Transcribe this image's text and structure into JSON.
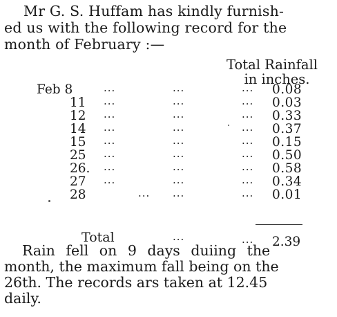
{
  "intro": {
    "lines": [
      "Mr G. S. Huffam has kindly furnish-",
      "ed us with the following record for the",
      "month of February :—"
    ]
  },
  "table": {
    "header": [
      "Total Rainfall",
      "in inches."
    ],
    "dots": "...",
    "rows": [
      {
        "day": "Feb  8",
        "value": "0.08"
      },
      {
        "day": "11",
        "value": "0.03"
      },
      {
        "day": "12",
        "value": "0.33"
      },
      {
        "day": "14",
        "value": "0.37"
      },
      {
        "day": "15",
        "value": "0.15"
      },
      {
        "day": "25",
        "value": "0.50"
      },
      {
        "day": "26.",
        "value": "0.58"
      },
      {
        "day": "27",
        "value": "0.34"
      },
      {
        "day": "28",
        "value": "0.01"
      }
    ],
    "total": {
      "label": "Total",
      "value": "2.39"
    }
  },
  "closing": {
    "lines": [
      "Rain fell on 9 days duiing the",
      "month, the maximum fall being on the",
      "26th.  The records ars taken at 12.45",
      "daily."
    ]
  }
}
